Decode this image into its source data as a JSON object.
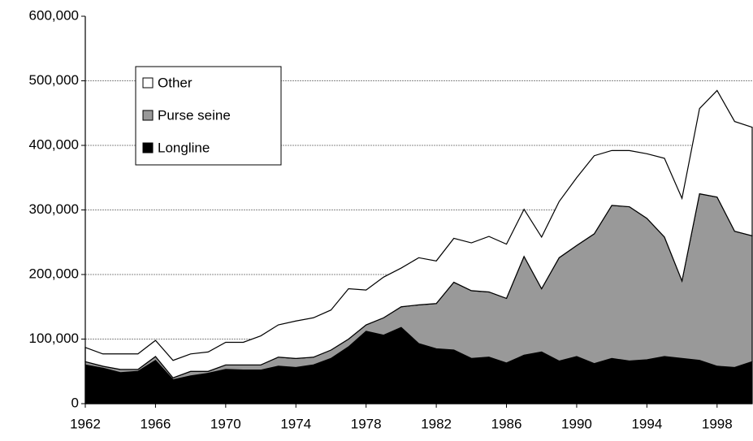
{
  "chart_data": {
    "type": "stacked_area",
    "x": [
      1962,
      1963,
      1964,
      1965,
      1966,
      1967,
      1968,
      1969,
      1970,
      1971,
      1972,
      1973,
      1974,
      1975,
      1976,
      1977,
      1978,
      1979,
      1980,
      1981,
      1982,
      1983,
      1984,
      1985,
      1986,
      1987,
      1988,
      1989,
      1990,
      1991,
      1992,
      1993,
      1994,
      1995,
      1996,
      1997,
      1998,
      1999,
      2000
    ],
    "series": [
      {
        "name": "Longline",
        "color": "#000000",
        "values": [
          60000,
          55000,
          48000,
          50000,
          67000,
          37000,
          43000,
          47000,
          53000,
          52000,
          52000,
          58000,
          56000,
          60000,
          70000,
          88000,
          112000,
          106000,
          118000,
          93000,
          85000,
          83000,
          70000,
          72000,
          63000,
          75000,
          80000,
          66000,
          73000,
          62000,
          70000,
          66000,
          68000,
          73000,
          70000,
          67000,
          58000,
          56000,
          65000
        ]
      },
      {
        "name": "Purse seine",
        "color": "#999999",
        "values": [
          5000,
          3000,
          5000,
          3000,
          6000,
          3000,
          7000,
          3000,
          7000,
          8000,
          8000,
          14000,
          14000,
          12000,
          13000,
          12000,
          10000,
          27000,
          32000,
          60000,
          70000,
          105000,
          105000,
          101000,
          100000,
          153000,
          98000,
          160000,
          172000,
          201000,
          237000,
          239000,
          219000,
          185000,
          120000,
          258000,
          262000,
          211000,
          195000
        ]
      },
      {
        "name": "Other",
        "color": "#ffffff",
        "values": [
          22000,
          19000,
          24000,
          24000,
          25000,
          27000,
          27000,
          30000,
          35000,
          35000,
          45000,
          50000,
          58000,
          61000,
          62000,
          78000,
          54000,
          63000,
          60000,
          73000,
          66000,
          68000,
          74000,
          86000,
          84000,
          73000,
          80000,
          87000,
          105000,
          121000,
          85000,
          87000,
          100000,
          122000,
          128000,
          132000,
          165000,
          170000,
          168000
        ]
      }
    ],
    "xlim": [
      1962,
      2000
    ],
    "xticks": [
      1962,
      1966,
      1970,
      1974,
      1978,
      1982,
      1986,
      1990,
      1994,
      1998
    ],
    "ylim": [
      0,
      600000
    ],
    "yticks": [
      0,
      {
        "value": 100000,
        "label": "100,000"
      },
      {
        "value": 200000,
        "label": "200,000"
      },
      {
        "value": 300000,
        "label": "300,000"
      },
      {
        "value": 400000,
        "label": "400,000"
      },
      {
        "value": 500000,
        "label": "500,000"
      },
      {
        "value": 600000,
        "label": "600,000"
      }
    ],
    "grid": true,
    "legend": "upper left"
  }
}
